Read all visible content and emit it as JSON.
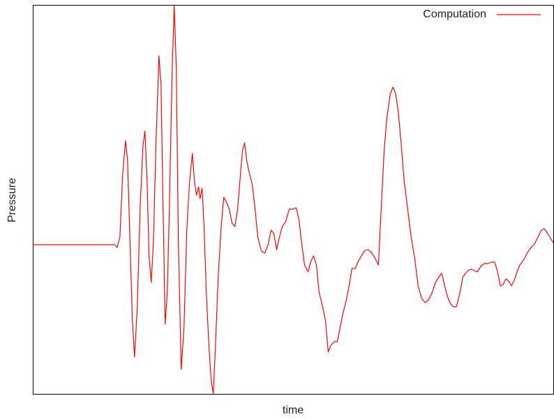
{
  "chart_data": {
    "type": "line",
    "x_label": "time",
    "y_label": "Pressure",
    "x": [
      0,
      118,
      121,
      125,
      129,
      133,
      136,
      139,
      143,
      146,
      150,
      154,
      158,
      161,
      164,
      167,
      170,
      173,
      177,
      181,
      184,
      187,
      190,
      193,
      196,
      200,
      203,
      206,
      209,
      213,
      217,
      221,
      225,
      229,
      232,
      235,
      238,
      240,
      243,
      246,
      249,
      253,
      256,
      259,
      262,
      266,
      270,
      274,
      278,
      282,
      286,
      290,
      294,
      298,
      301,
      304,
      307,
      310,
      315,
      319,
      323,
      328,
      333,
      338,
      342,
      346,
      350,
      354,
      358,
      363,
      368,
      373,
      378,
      382,
      386,
      390,
      395,
      399,
      403,
      407,
      411,
      416,
      420,
      424,
      428,
      433,
      437,
      441,
      445,
      450,
      454,
      458,
      463,
      467,
      471,
      476,
      481,
      486,
      491,
      496,
      500,
      504,
      508,
      513,
      517,
      521,
      525,
      529,
      533,
      538,
      543,
      548,
      553,
      558,
      563,
      568,
      573,
      578,
      583,
      587,
      591,
      595,
      599,
      603,
      608,
      613,
      617,
      621,
      625,
      629,
      633,
      638,
      643,
      648,
      653,
      658,
      663,
      667,
      671,
      675,
      679,
      683,
      687,
      691,
      695,
      699,
      705,
      710,
      715,
      720,
      725,
      730,
      734,
      739,
      743,
      747
    ],
    "series": [
      {
        "name": "Computation",
        "color": "#ff0000",
        "values": [
          0,
          0,
          -4,
          11,
          101,
          149,
          121,
          21,
          -109,
          -161,
          -89,
          51,
          141,
          163,
          91,
          -19,
          -54,
          1,
          151,
          271,
          231,
          51,
          -114,
          -69,
          51,
          251,
          343,
          251,
          1,
          -179,
          -119,
          21,
          91,
          131,
          91,
          71,
          83,
          66,
          81,
          21,
          -69,
          -149,
          -194,
          -214,
          -149,
          -49,
          21,
          68,
          61,
          51,
          31,
          26,
          51,
          101,
          136,
          146,
          121,
          106,
          86,
          51,
          11,
          -9,
          -12,
          1,
          21,
          16,
          -7,
          11,
          26,
          33,
          51,
          51,
          53,
          36,
          1,
          -29,
          -39,
          -24,
          -16,
          -29,
          -69,
          -89,
          -109,
          -154,
          -144,
          -139,
          -139,
          -119,
          -99,
          -79,
          -59,
          -34,
          -34,
          -24,
          -17,
          -9,
          -7,
          -11,
          -19,
          -29,
          51,
          131,
          181,
          216,
          226,
          216,
          186,
          141,
          91,
          51,
          11,
          -19,
          -59,
          -77,
          -83,
          -79,
          -69,
          -54,
          -46,
          -41,
          -59,
          -74,
          -84,
          -89,
          -89,
          -69,
          -47,
          -41,
          -37,
          -35,
          -37,
          -39,
          -31,
          -27,
          -27,
          -25,
          -25,
          -39,
          -59,
          -57,
          -49,
          -52,
          -59,
          -51,
          -39,
          -29,
          -21,
          -11,
          -4,
          1,
          11,
          21,
          23,
          16,
          9,
          3
        ]
      }
    ],
    "xlim": [
      0,
      747
    ],
    "ylim": [
      -214,
      344
    ],
    "legend": "top-right"
  }
}
